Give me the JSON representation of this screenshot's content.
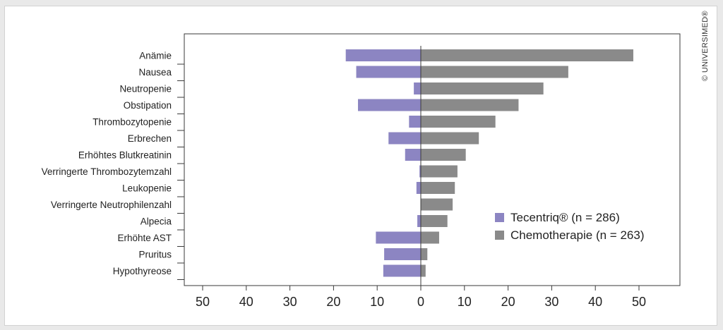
{
  "colors": {
    "tecentriq": "#8c85c2",
    "chemo": "#8a8a8a",
    "axis": "#3a3a3a"
  },
  "copyright": "© UNIVERSIMED®",
  "chart_data": {
    "type": "bar",
    "orientation": "horizontal",
    "layout": "back-to-back",
    "title": "",
    "xlabel": "",
    "ylabel": "",
    "xlim": [
      -55,
      59
    ],
    "x_ticks": [
      -50,
      -40,
      -30,
      -20,
      -10,
      0,
      10,
      20,
      30,
      40,
      50
    ],
    "x_tick_labels": [
      "50",
      "40",
      "30",
      "20",
      "10",
      "0",
      "10",
      "20",
      "30",
      "40",
      "50"
    ],
    "categories": [
      "Anämie",
      "Nausea",
      "Neutropenie",
      "Obstipation",
      "Thrombozytopenie",
      "Erbrechen",
      "Erhöhtes Blutkreatinin",
      "Verringerte Thrombozytemzahl",
      "Leukopenie",
      "Verringerte Neutrophilenzahl",
      "Alpecia",
      "Erhöhte AST",
      "Pruritus",
      "Hypothyreose"
    ],
    "series": [
      {
        "name": "Tecentriq® (n = 286)",
        "direction": "left",
        "values": [
          17.2,
          14.8,
          1.6,
          14.4,
          2.7,
          7.4,
          3.6,
          0.3,
          1.0,
          0.0,
          0.8,
          10.3,
          8.4,
          8.6
        ]
      },
      {
        "name": "Chemotherapie (n = 263)",
        "direction": "right",
        "values": [
          48.7,
          33.8,
          28.1,
          22.4,
          17.1,
          13.3,
          10.3,
          8.4,
          7.8,
          7.3,
          6.1,
          4.2,
          1.5,
          1.1
        ]
      }
    ],
    "legend_position": "lower-right",
    "grid": false
  }
}
